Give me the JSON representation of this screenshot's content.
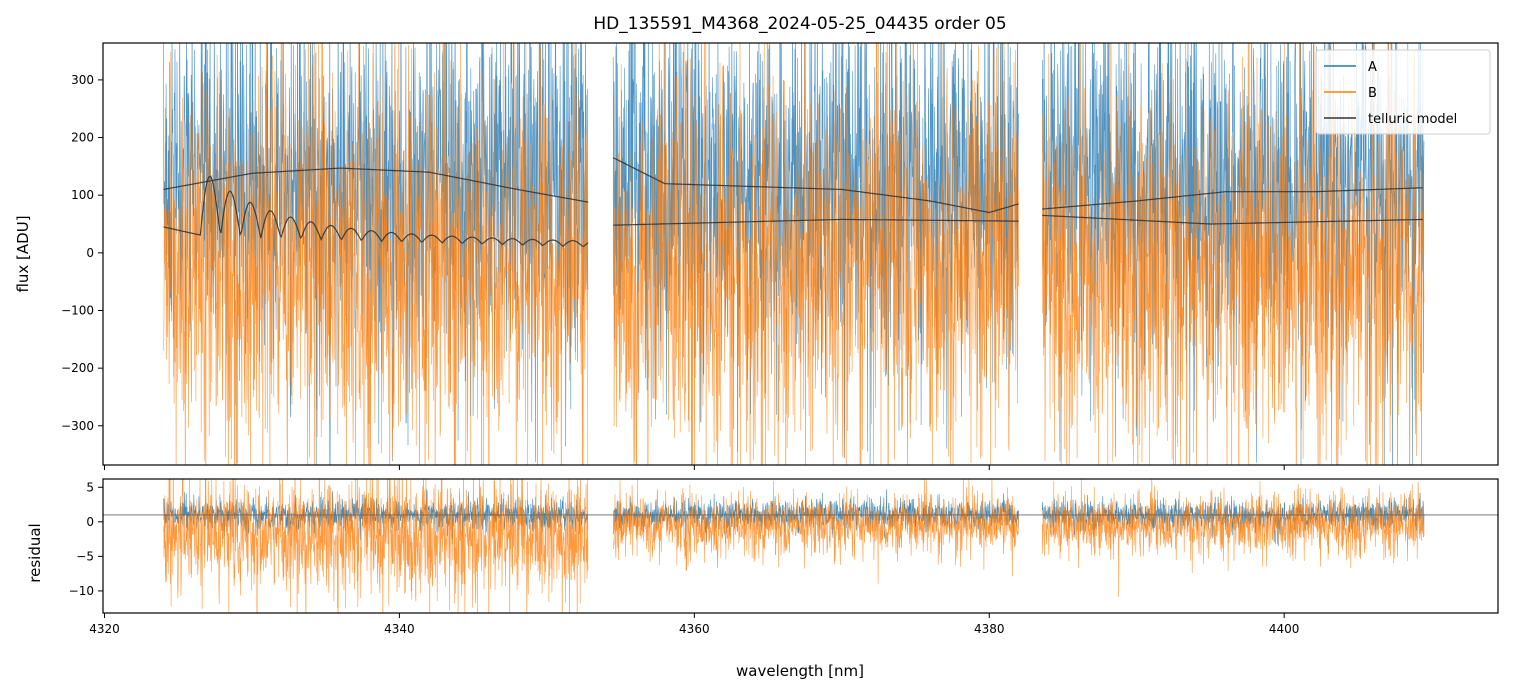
{
  "chart_data": {
    "type": "line",
    "title": "HD_135591_M4368_2024-05-25_04435  order 05",
    "xlabel": "wavelength [nm]",
    "xlim": [
      4319.9,
      4414.5
    ],
    "xticks": [
      4320,
      4340,
      4360,
      4380,
      4400
    ],
    "xticklabels": [
      "4320",
      "4340",
      "4360",
      "4380",
      "4400"
    ],
    "segments": [
      [
        4324.0,
        4352.8
      ],
      [
        4354.5,
        4382.0
      ],
      [
        4383.6,
        4409.5
      ]
    ],
    "top_panel": {
      "ylabel": "flux [ADU]",
      "ylim": [
        -368,
        364
      ],
      "yticks": [
        -300,
        -200,
        -100,
        0,
        100,
        200,
        300
      ],
      "yticklabels": [
        "−300",
        "−200",
        "−100",
        "0",
        "100",
        "200",
        "300"
      ],
      "series": [
        {
          "name": "A",
          "color": "#1f77b4",
          "center": 120,
          "spread": 170
        },
        {
          "name": "B",
          "color": "#ff7f0e",
          "center": -30,
          "spread": 190
        },
        {
          "name": "telluric model",
          "color": "#333333",
          "continuum_upper": [
            [
              4324,
              110
            ],
            [
              4330,
              138
            ],
            [
              4336,
              147
            ],
            [
              4342,
              140
            ],
            [
              4348,
              110
            ],
            [
              4352.8,
              88
            ],
            [
              4354.5,
              165
            ],
            [
              4358,
              120
            ],
            [
              4364,
              115
            ],
            [
              4370,
              110
            ],
            [
              4376,
              90
            ],
            [
              4380,
              70
            ],
            [
              4382,
              85
            ],
            [
              4383.6,
              76
            ],
            [
              4390,
              90
            ],
            [
              4396,
              106
            ],
            [
              4402,
              106
            ],
            [
              4409.5,
              113
            ]
          ],
          "continuum_lower": [
            [
              4324,
              45
            ],
            [
              4327,
              28
            ],
            [
              4352.8,
              10
            ],
            [
              4354.5,
              48
            ],
            [
              4370,
              58
            ],
            [
              4382,
              55
            ],
            [
              4383.6,
              65
            ],
            [
              4395,
              50
            ],
            [
              4409.5,
              58
            ]
          ]
        }
      ]
    },
    "bottom_panel": {
      "ylabel": "residual",
      "ylim": [
        -13.2,
        6.2
      ],
      "yticks": [
        -10,
        -5,
        0,
        5
      ],
      "yticklabels": [
        "−10",
        "−5",
        "0",
        "5"
      ],
      "hline": 1.0,
      "series": [
        {
          "name": "A",
          "color": "#1f77b4",
          "center": 1.0,
          "spread": 1.2
        },
        {
          "name": "B",
          "color": "#ff7f0e",
          "center": -0.5,
          "spread": 3.5
        }
      ]
    },
    "legend": {
      "placement": "top-right",
      "entries": [
        "A",
        "B",
        "telluric model"
      ]
    }
  }
}
